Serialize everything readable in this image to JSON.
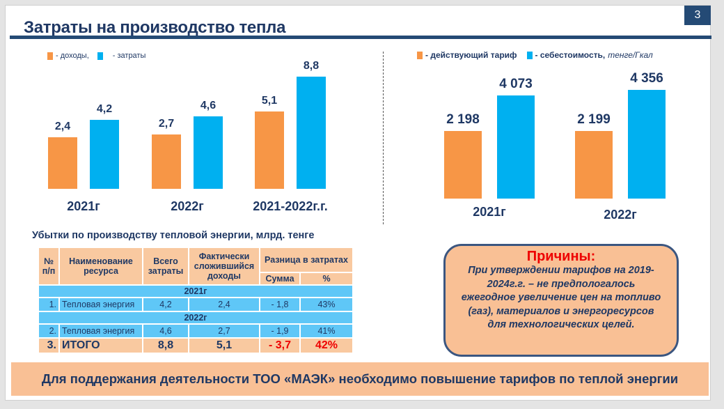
{
  "header": {
    "title": "Затраты на производство тепла",
    "page_number": "3"
  },
  "colors": {
    "orange": "#f79646",
    "blue": "#00b0f0",
    "navy": "#1f3864"
  },
  "chart_data": [
    {
      "type": "bar",
      "legend": [
        "- доходы,",
        "- затраты"
      ],
      "categories": [
        "2021г",
        "2022г",
        "2021-2022г.г."
      ],
      "series": [
        {
          "name": "доходы",
          "values": [
            2.4,
            2.7,
            5.1
          ],
          "labels": [
            "2,4",
            "2,7",
            "5,1"
          ]
        },
        {
          "name": "затраты",
          "values": [
            4.2,
            4.6,
            8.8
          ],
          "labels": [
            "4,2",
            "4,6",
            "8,8"
          ]
        }
      ]
    },
    {
      "type": "bar",
      "legend": [
        "- действующий тариф",
        "- себестоимость,"
      ],
      "unit": "тенге/Гкал",
      "categories": [
        "2021г",
        "2022г"
      ],
      "series": [
        {
          "name": "действующий тариф",
          "values": [
            2198,
            2199
          ],
          "labels": [
            "2 198",
            "2 199"
          ]
        },
        {
          "name": "себестоимость",
          "values": [
            4073,
            4356
          ],
          "labels": [
            "4 073",
            "4 356"
          ]
        }
      ]
    }
  ],
  "table": {
    "title": "Убытки по производству тепловой энергии, млрд. тенге",
    "headers": {
      "num": "№ п/п",
      "name": "Наименование ресурса",
      "total": "Всего затраты",
      "actual": "Фактически сложившийся доходы",
      "diff": "Разница в затратах",
      "sum": "Сумма",
      "pct": "%"
    },
    "groups": [
      {
        "year": "2021г",
        "row": [
          "1.",
          "Тепловая энергия",
          "4,2",
          "2,4",
          "- 1,8",
          "43%"
        ]
      },
      {
        "year": "2022г",
        "row": [
          "2.",
          "Тепловая энергия",
          "4,6",
          "2,7",
          "- 1,9",
          "41%"
        ]
      }
    ],
    "total": [
      "3.",
      "ИТОГО",
      "8,8",
      "5,1",
      "- 3,7",
      "42%"
    ]
  },
  "reasons": {
    "title": "Причины:",
    "text": "При утверждении тарифов на 2019-2024г.г. – не предпологалось ежегодное увеличение цен на топливо (газ), материалов и энергоресурсов для технологических целей."
  },
  "footer": "Для поддержания деятельности ТОО «МАЭК» необходимо повышение тарифов по теплой энергии"
}
